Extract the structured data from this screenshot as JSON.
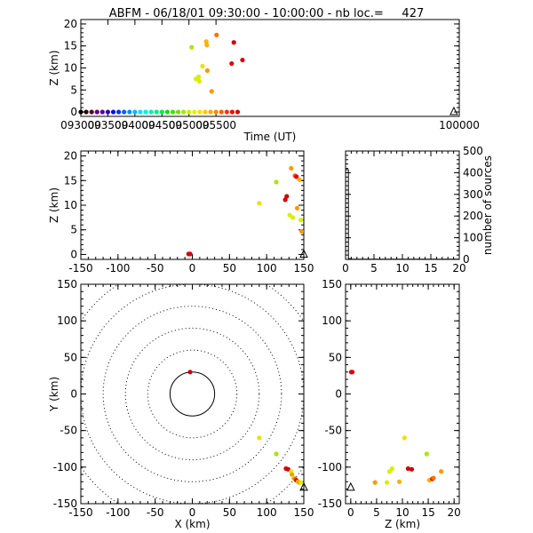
{
  "title": "ABFM - 06/18/01 09:30:00 - 10:00:00 - nb loc.=     427",
  "chart_data": [
    {
      "id": "time_height",
      "type": "scatter",
      "xlabel": "Time (UT)",
      "ylabel": "Z (km)",
      "xlim": [
        93000,
        100000
      ],
      "ylim": [
        -1,
        21
      ],
      "xticks": [
        93000,
        93500,
        94000,
        94500,
        95000,
        95500,
        100000
      ],
      "xtick_labels": [
        "093000",
        "093500",
        "094000",
        "094500",
        "095000",
        "095500",
        "100000"
      ],
      "yticks": [
        0,
        5,
        10,
        15,
        20
      ],
      "points": [
        {
          "t": 95050,
          "z": 14.7,
          "color": "#a8e800"
        },
        {
          "t": 95130,
          "z": 7.5,
          "color": "#d8f000"
        },
        {
          "t": 95180,
          "z": 8.0,
          "color": "#d8f000"
        },
        {
          "t": 95190,
          "z": 7.0,
          "color": "#d8f000"
        },
        {
          "t": 95250,
          "z": 10.4,
          "color": "#f0e000"
        },
        {
          "t": 95320,
          "z": 16.0,
          "color": "#ffb000"
        },
        {
          "t": 95330,
          "z": 15.2,
          "color": "#ffb000"
        },
        {
          "t": 95340,
          "z": 9.4,
          "color": "#ff9800"
        },
        {
          "t": 95420,
          "z": 4.7,
          "color": "#ff9800"
        },
        {
          "t": 95510,
          "z": 17.5,
          "color": "#ff7000"
        },
        {
          "t": 95790,
          "z": 11.0,
          "color": "#e00000"
        },
        {
          "t": 95830,
          "z": 15.8,
          "color": "#d00000"
        },
        {
          "t": 95990,
          "z": 11.8,
          "color": "#e00000"
        }
      ],
      "time_markers": [
        {
          "t": 93000,
          "color": "#000000"
        },
        {
          "t": 93100,
          "color": "#300000"
        },
        {
          "t": 93200,
          "color": "#500030"
        },
        {
          "t": 93300,
          "color": "#600070"
        },
        {
          "t": 93400,
          "color": "#5000a0"
        },
        {
          "t": 93500,
          "color": "#3000c0"
        },
        {
          "t": 93600,
          "color": "#0010e0"
        },
        {
          "t": 93700,
          "color": "#0030ff"
        },
        {
          "t": 93800,
          "color": "#0060ff"
        },
        {
          "t": 93900,
          "color": "#0090ff"
        },
        {
          "t": 94000,
          "color": "#00b8ff"
        },
        {
          "t": 94100,
          "color": "#00e0ff"
        },
        {
          "t": 94200,
          "color": "#00f0e0"
        },
        {
          "t": 94300,
          "color": "#00f0b0"
        },
        {
          "t": 94400,
          "color": "#00f080"
        },
        {
          "t": 94500,
          "color": "#00e850"
        },
        {
          "t": 94600,
          "color": "#10e000"
        },
        {
          "t": 94700,
          "color": "#40e000"
        },
        {
          "t": 94800,
          "color": "#70e000"
        },
        {
          "t": 94900,
          "color": "#a0e800"
        },
        {
          "t": 95000,
          "color": "#c8f000"
        },
        {
          "t": 95100,
          "color": "#e8f000"
        },
        {
          "t": 95200,
          "color": "#f8e000"
        },
        {
          "t": 95300,
          "color": "#ffc800"
        },
        {
          "t": 95400,
          "color": "#ffa800"
        },
        {
          "t": 95500,
          "color": "#ff8800"
        },
        {
          "t": 95600,
          "color": "#ff6000"
        },
        {
          "t": 95700,
          "color": "#ff3000"
        },
        {
          "t": 95800,
          "color": "#ff0000"
        },
        {
          "t": 95900,
          "color": "#e00000"
        }
      ],
      "station_marker": {
        "t": 99900,
        "z": 0
      }
    },
    {
      "id": "x_height",
      "type": "scatter",
      "xlabel": "",
      "ylabel": "Z (km)",
      "xlim": [
        -150,
        150
      ],
      "ylim": [
        -1,
        21
      ],
      "xticks": [
        -150,
        -100,
        -50,
        0,
        50,
        100,
        150
      ],
      "yticks": [
        0,
        5,
        10,
        15,
        20
      ],
      "points": [
        {
          "x": -5,
          "z": 0.1,
          "color": "#d00000"
        },
        {
          "x": -3,
          "z": 0.1,
          "color": "#e00000"
        },
        {
          "x": 90,
          "z": 10.4,
          "color": "#f0e000"
        },
        {
          "x": 113,
          "z": 14.7,
          "color": "#a8e800"
        },
        {
          "x": 125,
          "z": 11.1,
          "color": "#e00000"
        },
        {
          "x": 127,
          "z": 11.8,
          "color": "#d00000"
        },
        {
          "x": 131,
          "z": 8.0,
          "color": "#d8f000"
        },
        {
          "x": 135,
          "z": 7.5,
          "color": "#d8f000"
        },
        {
          "x": 133,
          "z": 17.5,
          "color": "#ff9800"
        },
        {
          "x": 138,
          "z": 16.0,
          "color": "#ff7000"
        },
        {
          "x": 140,
          "z": 15.8,
          "color": "#e00000"
        },
        {
          "x": 141,
          "z": 9.4,
          "color": "#ff9800"
        },
        {
          "x": 144,
          "z": 15.2,
          "color": "#ffb000"
        },
        {
          "x": 146,
          "z": 7.0,
          "color": "#d8f000"
        },
        {
          "x": 147,
          "z": 4.7,
          "color": "#ff9800"
        }
      ],
      "station_marker": {
        "x": 150,
        "z": 0
      }
    },
    {
      "id": "height_histogram",
      "type": "line",
      "xlabel": "",
      "ylabel": "number of sources",
      "xlim": [
        0,
        20
      ],
      "ylim": [
        0,
        500
      ],
      "xticks": [
        0,
        5,
        10,
        15,
        20
      ],
      "yticks": [
        0,
        100,
        200,
        300,
        400,
        500
      ],
      "x": [
        0,
        0.5,
        0.5,
        1,
        1,
        20
      ],
      "y": [
        414,
        414,
        3,
        3,
        1,
        1
      ]
    },
    {
      "id": "plan_view",
      "type": "scatter",
      "xlabel": "X (km)",
      "ylabel": "Y (km)",
      "xlim": [
        -150,
        150
      ],
      "ylim": [
        -150,
        150
      ],
      "xticks": [
        -150,
        -100,
        -50,
        0,
        50,
        100,
        150
      ],
      "yticks": [
        -150,
        -100,
        -50,
        0,
        50,
        100,
        150
      ],
      "range_rings_km": [
        30,
        60,
        90,
        120,
        150,
        180
      ],
      "points": [
        {
          "x": -3,
          "y": 30,
          "color": "#d00000"
        },
        {
          "x": 90,
          "y": -60,
          "color": "#f0e000"
        },
        {
          "x": 113,
          "y": -82,
          "color": "#a8e800"
        },
        {
          "x": 126,
          "y": -102,
          "color": "#e00000"
        },
        {
          "x": 129,
          "y": -103,
          "color": "#d00000"
        },
        {
          "x": 133,
          "y": -106,
          "color": "#d8f000"
        },
        {
          "x": 134,
          "y": -110,
          "color": "#ff9800"
        },
        {
          "x": 136,
          "y": -115,
          "color": "#d8f000"
        },
        {
          "x": 138,
          "y": -116,
          "color": "#ff7000"
        },
        {
          "x": 140,
          "y": -118,
          "color": "#e00000"
        },
        {
          "x": 142,
          "y": -120,
          "color": "#ffb000"
        },
        {
          "x": 144,
          "y": -121,
          "color": "#ff9800"
        },
        {
          "x": 146,
          "y": -121,
          "color": "#d8f000"
        }
      ],
      "station_marker": {
        "x": 150,
        "y": -128
      }
    },
    {
      "id": "height_y",
      "type": "scatter",
      "xlabel": "Z (km)",
      "ylabel": "",
      "xlim": [
        -1,
        21
      ],
      "ylim": [
        -150,
        150
      ],
      "xticks": [
        0,
        5,
        10,
        15,
        20
      ],
      "yticks": [
        -150,
        -100,
        -50,
        0,
        50,
        100,
        150
      ],
      "points": [
        {
          "z": 0.1,
          "y": 30,
          "color": "#d00000"
        },
        {
          "z": 0.3,
          "y": 30,
          "color": "#e00000"
        },
        {
          "z": 4.7,
          "y": -121,
          "color": "#ff9800"
        },
        {
          "z": 7.0,
          "y": -121,
          "color": "#d8f000"
        },
        {
          "z": 7.5,
          "y": -106,
          "color": "#d8f000"
        },
        {
          "z": 8.0,
          "y": -102,
          "color": "#d8f000"
        },
        {
          "z": 9.4,
          "y": -120,
          "color": "#ffb000"
        },
        {
          "z": 10.4,
          "y": -60,
          "color": "#f0e000"
        },
        {
          "z": 11.1,
          "y": -102,
          "color": "#e00000"
        },
        {
          "z": 11.8,
          "y": -103,
          "color": "#d00000"
        },
        {
          "z": 14.7,
          "y": -82,
          "color": "#a8e800"
        },
        {
          "z": 15.2,
          "y": -118,
          "color": "#ffb000"
        },
        {
          "z": 15.8,
          "y": -116,
          "color": "#e00000"
        },
        {
          "z": 16.0,
          "y": -115,
          "color": "#ff7000"
        },
        {
          "z": 17.5,
          "y": -106,
          "color": "#ff9800"
        }
      ],
      "station_marker": {
        "z": 0,
        "y": -128
      }
    }
  ]
}
